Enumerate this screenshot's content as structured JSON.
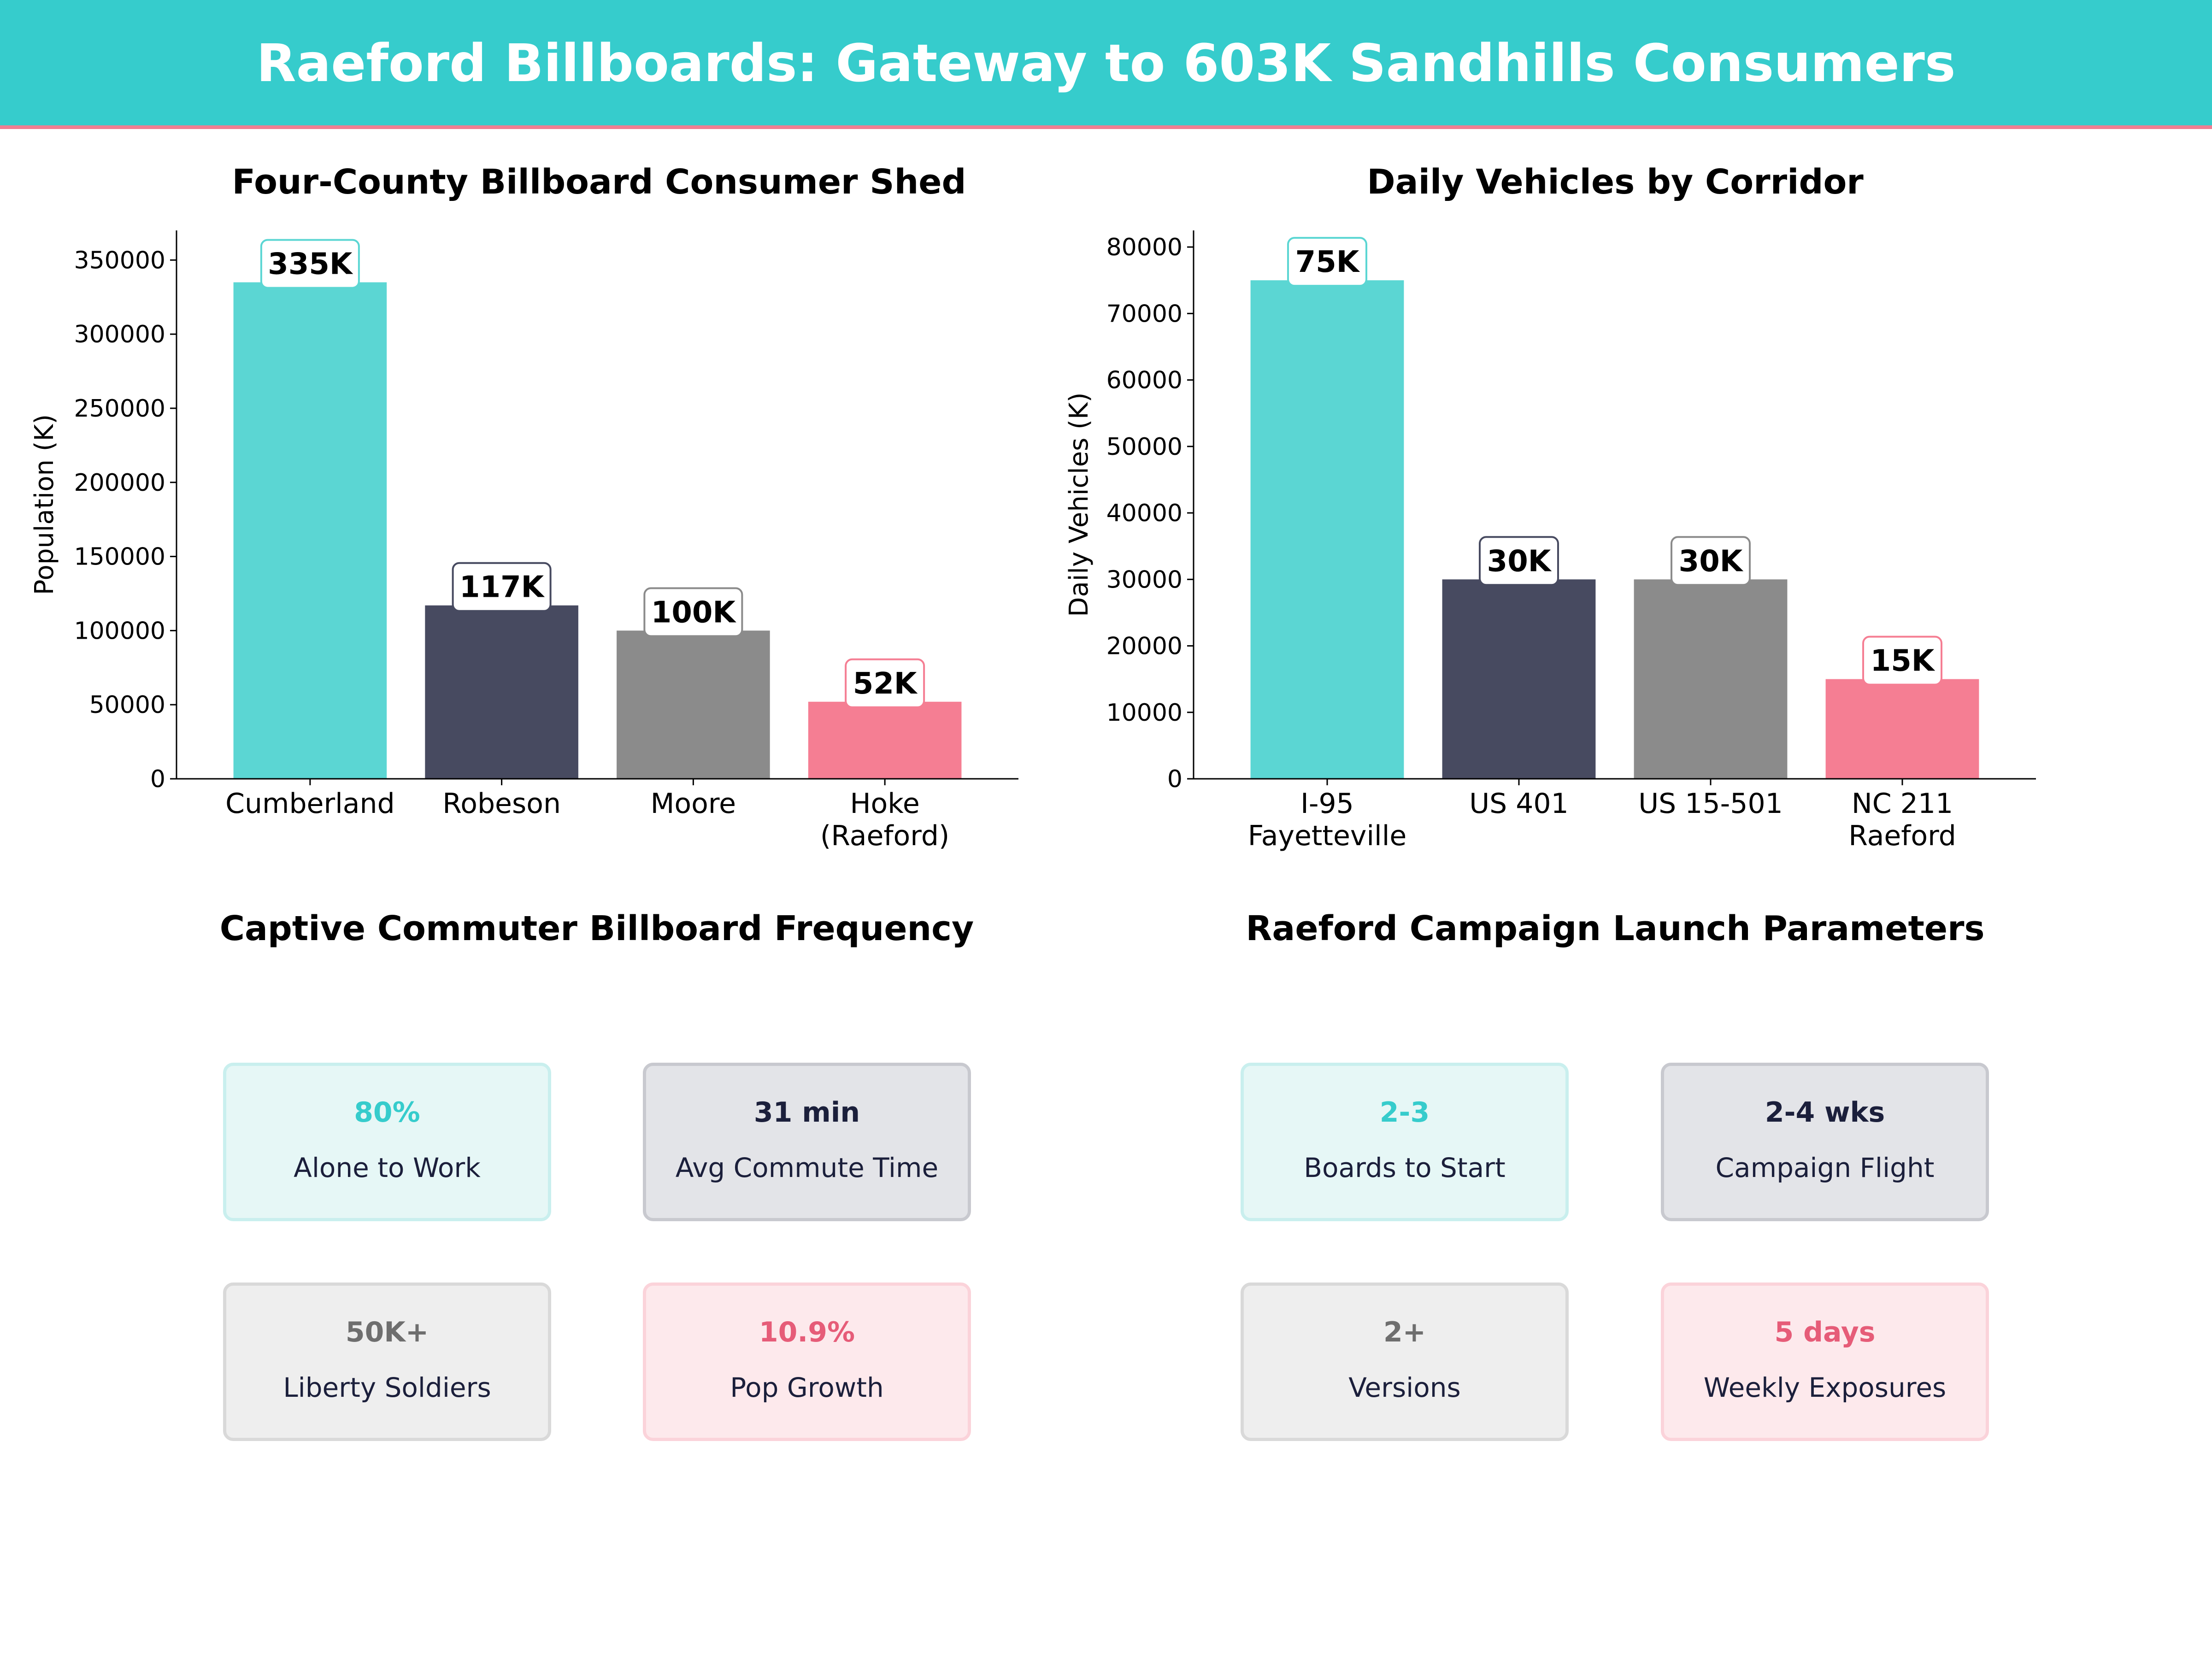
{
  "header": {
    "title": "Raeford Billboards: Gateway to 603K Sandhills Consumers"
  },
  "colors": {
    "teal": "#5bd6d3",
    "navy": "#474a60",
    "gray": "#8b8b8b",
    "pink": "#f57e93",
    "banner": "#36cccc",
    "accent_line": "#f07e92"
  },
  "chart_data": [
    {
      "type": "bar",
      "title": "Four-County Billboard Consumer Shed",
      "xlabel": "",
      "ylabel": "Population (K)",
      "categories": [
        "Cumberland",
        "Robeson",
        "Moore",
        "Hoke\n(Raeford)"
      ],
      "values": [
        335000,
        117000,
        100000,
        52000
      ],
      "data_labels": [
        "335K",
        "117K",
        "100K",
        "52K"
      ],
      "bar_colors": [
        "#5bd6d3",
        "#474a60",
        "#8b8b8b",
        "#f57e93"
      ],
      "ylim": [
        0,
        370000
      ],
      "yticks": [
        0,
        50000,
        100000,
        150000,
        200000,
        250000,
        300000,
        350000
      ],
      "grid": false,
      "legend": "none"
    },
    {
      "type": "bar",
      "title": "Daily Vehicles by Corridor",
      "xlabel": "",
      "ylabel": "Daily Vehicles (K)",
      "categories": [
        "I-95\nFayetteville",
        "US 401",
        "US 15-501",
        "NC 211\nRaeford"
      ],
      "values": [
        75000,
        30000,
        30000,
        15000
      ],
      "data_labels": [
        "75K",
        "30K",
        "30K",
        "15K"
      ],
      "bar_colors": [
        "#5bd6d3",
        "#474a60",
        "#8b8b8b",
        "#f57e93"
      ],
      "ylim": [
        0,
        82500
      ],
      "yticks": [
        0,
        10000,
        20000,
        30000,
        40000,
        50000,
        60000,
        70000,
        80000
      ],
      "grid": false,
      "legend": "none"
    }
  ],
  "frequency": {
    "title": "Captive Commuter Billboard Frequency",
    "cards": [
      {
        "value": "80%",
        "label": "Alone to Work",
        "accent": "#36cccc",
        "fill": "#e6f7f6",
        "border": "#c9efee"
      },
      {
        "value": "31 min",
        "label": "Avg Commute Time",
        "accent": "#1b1f3b",
        "fill": "#e3e4e8",
        "border": "#c8c9cf"
      },
      {
        "value": "50K+",
        "label": "Liberty Soldiers",
        "accent": "#6e6e6e",
        "fill": "#eeeeee",
        "border": "#d9d9d9"
      },
      {
        "value": "10.9%",
        "label": "Pop Growth",
        "accent": "#e65c78",
        "fill": "#fde9ec",
        "border": "#fbd3da"
      }
    ]
  },
  "launch": {
    "title": "Raeford Campaign Launch Parameters",
    "cards": [
      {
        "value": "2-3",
        "label": "Boards to Start",
        "accent": "#36cccc",
        "fill": "#e6f7f6",
        "border": "#c9efee"
      },
      {
        "value": "2-4 wks",
        "label": "Campaign Flight",
        "accent": "#1b1f3b",
        "fill": "#e3e4e8",
        "border": "#c8c9cf"
      },
      {
        "value": "2+",
        "label": "Versions",
        "accent": "#6e6e6e",
        "fill": "#eeeeee",
        "border": "#d9d9d9"
      },
      {
        "value": "5 days",
        "label": "Weekly Exposures",
        "accent": "#e65c78",
        "fill": "#fde9ec",
        "border": "#fbd3da"
      }
    ]
  }
}
